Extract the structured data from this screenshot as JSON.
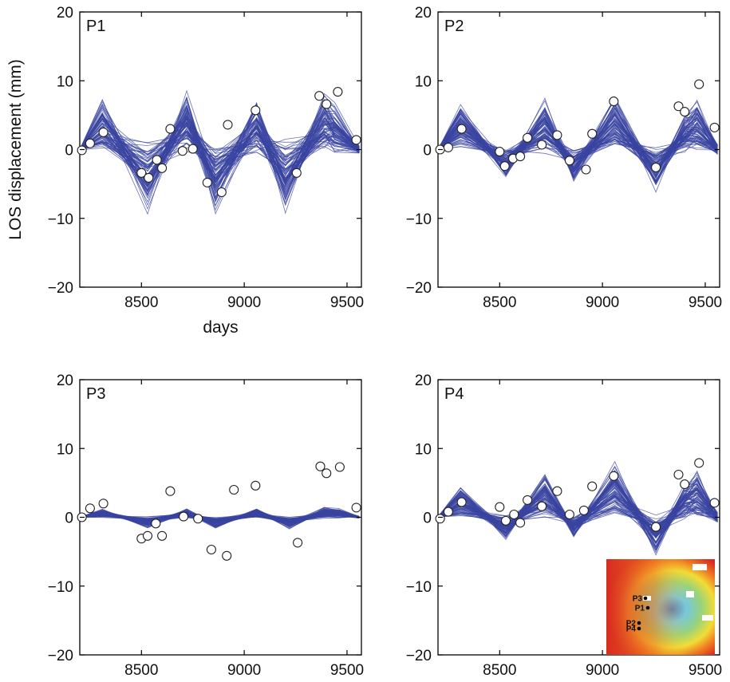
{
  "chart_data": [
    {
      "type": "line",
      "panel_label": "P1",
      "xlabel": "days",
      "ylabel": "LOS displacement (mm)",
      "xlim": [
        8200,
        9570
      ],
      "ylim": [
        -20,
        20
      ],
      "xticks": [
        8500,
        9000,
        9500
      ],
      "yticks": [
        -20,
        -10,
        0,
        10,
        20
      ],
      "xtick_labels": [
        "8500",
        "9000",
        "9500"
      ],
      "ytick_labels": [
        "−20",
        "−10",
        "0",
        "10",
        "20"
      ],
      "grid": false,
      "ensemble": {
        "color": "#3a44a0",
        "n_lines": 80,
        "x": [
          8200,
          8310,
          8530,
          8720,
          8860,
          9060,
          9200,
          9390,
          9440,
          9560
        ],
        "center": [
          0,
          6,
          -7,
          7,
          -7,
          6,
          -7,
          7,
          5,
          0
        ],
        "spread": [
          0.5,
          9,
          13,
          10,
          13,
          11,
          13,
          8,
          9,
          3
        ]
      },
      "observations": {
        "x": [
          8210,
          8250,
          8315,
          8500,
          8535,
          8575,
          8600,
          8640,
          8700,
          8750,
          8820,
          8890,
          8920,
          9055,
          9255,
          9365,
          9400,
          9455,
          9545
        ],
        "y": [
          -0.1,
          0.9,
          2.5,
          -3.4,
          -4.1,
          -1.5,
          -2.7,
          3.0,
          -0.2,
          0.1,
          -4.8,
          -6.2,
          3.6,
          5.7,
          -3.4,
          7.8,
          6.6,
          8.4,
          1.4
        ]
      }
    },
    {
      "type": "line",
      "panel_label": "P2",
      "xlabel": "",
      "ylabel": "",
      "xlim": [
        8200,
        9570
      ],
      "ylim": [
        -20,
        20
      ],
      "xticks": [
        8500,
        9000,
        9500
      ],
      "yticks": [
        -20,
        -10,
        0,
        10,
        20
      ],
      "xtick_labels": [
        "8500",
        "9000",
        "9500"
      ],
      "ytick_labels": [
        "−20",
        "−10",
        "0",
        "10",
        "20"
      ],
      "grid": false,
      "ensemble": {
        "color": "#3a44a0",
        "n_lines": 80,
        "x": [
          8200,
          8310,
          8530,
          8720,
          8860,
          9060,
          9260,
          9400,
          9460,
          9560
        ],
        "center": [
          0,
          6,
          -3.5,
          6,
          -4,
          7,
          -5,
          4,
          6,
          0
        ],
        "spread": [
          0.5,
          5,
          4.5,
          6,
          5,
          7,
          6,
          6,
          7,
          4
        ]
      },
      "observations": {
        "x": [
          8210,
          8250,
          8315,
          8500,
          8525,
          8565,
          8600,
          8635,
          8705,
          8780,
          8840,
          8920,
          8950,
          9055,
          9260,
          9370,
          9400,
          9470,
          9545
        ],
        "y": [
          0.0,
          0.3,
          3.0,
          -0.3,
          -2.4,
          -1.3,
          -1.0,
          1.7,
          0.7,
          2.1,
          -1.6,
          -2.9,
          2.3,
          7.0,
          -2.6,
          6.3,
          5.5,
          9.5,
          3.2
        ]
      }
    },
    {
      "type": "line",
      "panel_label": "P3",
      "xlabel": "",
      "ylabel": "",
      "xlim": [
        8200,
        9570
      ],
      "ylim": [
        -20,
        20
      ],
      "xticks": [
        8500,
        9000,
        9500
      ],
      "yticks": [
        -20,
        -10,
        0,
        10,
        20
      ],
      "xtick_labels": [
        "8500",
        "9000",
        "9500"
      ],
      "ytick_labels": [
        "−20",
        "−10",
        "0",
        "10",
        "20"
      ],
      "grid": false,
      "ensemble": {
        "color": "#3a44a0",
        "n_lines": 80,
        "x": [
          8200,
          8310,
          8530,
          8720,
          8860,
          9060,
          9220,
          9390,
          9460,
          9560
        ],
        "center": [
          0,
          1,
          -1.2,
          1,
          -1.3,
          1.1,
          -1.3,
          1.2,
          1.0,
          0
        ],
        "spread": [
          0.2,
          1.2,
          1.8,
          1.6,
          2.0,
          1.6,
          2.2,
          1.6,
          1.5,
          0.8
        ]
      },
      "observations": {
        "x": [
          8210,
          8250,
          8315,
          8500,
          8530,
          8570,
          8600,
          8640,
          8705,
          8775,
          8840,
          8915,
          8950,
          9055,
          9260,
          9370,
          9400,
          9465,
          9545
        ],
        "y": [
          0.0,
          1.3,
          2.0,
          -3.1,
          -2.7,
          -0.9,
          -2.7,
          3.8,
          0.1,
          -0.2,
          -4.7,
          -5.6,
          4.0,
          4.6,
          -3.7,
          7.4,
          6.4,
          7.3,
          1.4
        ]
      }
    },
    {
      "type": "line",
      "panel_label": "P4",
      "xlabel": "",
      "ylabel": "",
      "xlim": [
        8200,
        9570
      ],
      "ylim": [
        -20,
        20
      ],
      "xticks": [
        8500,
        9000,
        9500
      ],
      "yticks": [
        -20,
        -10,
        0,
        10,
        20
      ],
      "xtick_labels": [
        "8500",
        "9000",
        "9500"
      ],
      "ytick_labels": [
        "−20",
        "−10",
        "0",
        "10",
        "20"
      ],
      "grid": false,
      "ensemble": {
        "color": "#3a44a0",
        "n_lines": 80,
        "x": [
          8200,
          8310,
          8530,
          8720,
          8860,
          9060,
          9260,
          9400,
          9460,
          9560
        ],
        "center": [
          0,
          4,
          -2.5,
          5.5,
          -2.5,
          7,
          -4.5,
          4,
          6,
          0
        ],
        "spread": [
          0.5,
          4,
          4,
          5,
          4.5,
          6,
          5.5,
          6,
          7,
          4
        ]
      },
      "observations": {
        "x": [
          8210,
          8250,
          8315,
          8500,
          8530,
          8570,
          8600,
          8635,
          8705,
          8780,
          8840,
          8910,
          8950,
          9055,
          9260,
          9370,
          9400,
          9470,
          9545
        ],
        "y": [
          -0.2,
          0.8,
          2.2,
          1.5,
          -0.5,
          0.4,
          -0.8,
          2.5,
          1.6,
          3.8,
          0.4,
          1.0,
          4.5,
          6.0,
          -1.4,
          6.2,
          4.8,
          7.9,
          2.1
        ]
      },
      "inset_map": {
        "markers": [
          "P3",
          "P1",
          "P2",
          "P4"
        ],
        "colors": [
          "#d82a20",
          "#ef7a22",
          "#f2dc36",
          "#98d37a",
          "#74c7e3",
          "#4a72c2"
        ]
      }
    }
  ]
}
